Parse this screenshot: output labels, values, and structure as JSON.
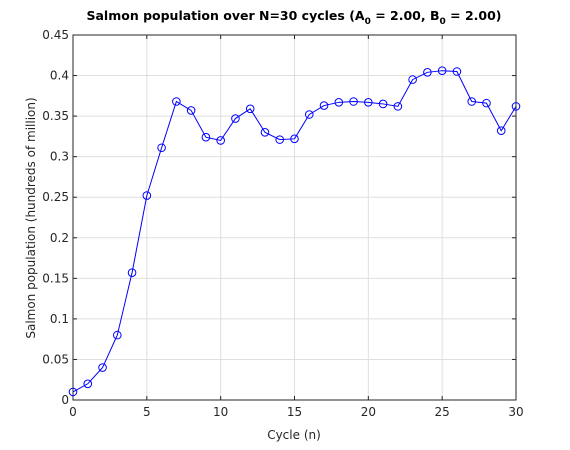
{
  "chart_data": {
    "type": "line",
    "title": {
      "prefix": "Salmon population over N=30 cycles (A",
      "a_sub": "0",
      "middle": " = 2.00, B",
      "b_sub": "0",
      "suffix": " = 2.00)"
    },
    "xlabel": "Cycle (n)",
    "ylabel": "Salmon population (hundreds of million)",
    "xlim": [
      0,
      30
    ],
    "ylim": [
      0,
      0.45
    ],
    "xticks": [
      0,
      5,
      10,
      15,
      20,
      25,
      30
    ],
    "yticks": [
      0,
      0.05,
      0.1,
      0.15,
      0.2,
      0.25,
      0.3,
      0.35,
      0.4,
      0.45
    ],
    "xtick_labels": [
      "0",
      "5",
      "10",
      "15",
      "20",
      "25",
      "30"
    ],
    "ytick_labels": [
      "0",
      "0.05",
      "0.1",
      "0.15",
      "0.2",
      "0.25",
      "0.3",
      "0.35",
      "0.4",
      "0.45"
    ],
    "grid": true,
    "marker": "circle",
    "series": [
      {
        "color": "#0000ff",
        "x": [
          0,
          1,
          2,
          3,
          4,
          5,
          6,
          7,
          8,
          9,
          10,
          11,
          12,
          13,
          14,
          15,
          16,
          17,
          18,
          19,
          20,
          21,
          22,
          23,
          24,
          25,
          26,
          27,
          28,
          29,
          30
        ],
        "values": [
          0.01,
          0.02,
          0.04,
          0.08,
          0.157,
          0.252,
          0.311,
          0.368,
          0.357,
          0.324,
          0.32,
          0.347,
          0.359,
          0.33,
          0.321,
          0.322,
          0.352,
          0.363,
          0.367,
          0.368,
          0.367,
          0.365,
          0.362,
          0.395,
          0.404,
          0.406,
          0.405,
          0.368,
          0.366,
          0.332,
          0.362
        ]
      }
    ]
  }
}
